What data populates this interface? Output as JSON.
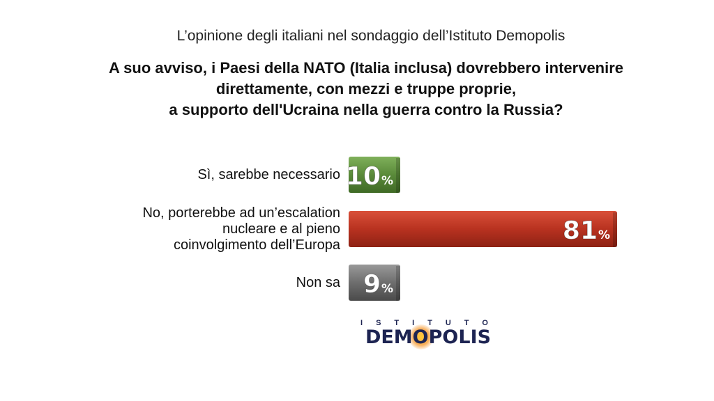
{
  "subtitle": "L’opinione degli italiani nel sondaggio dell’Istituto Demopolis",
  "question": [
    "A suo avviso, i Paesi della NATO (Italia inclusa) dovrebbero intervenire",
    "direttamente, con mezzi e truppe proprie,",
    "a supporto dell'Ucraina nella guerra contro la Russia?"
  ],
  "logo": {
    "top": "ISTITUTO",
    "main_pre": "DEM",
    "main_o": "O",
    "main_post": "POLIS"
  },
  "chart_data": {
    "type": "bar",
    "orientation": "horizontal",
    "unit": "%",
    "categories": [
      [
        "Sì, sarebbe necessario"
      ],
      [
        "No, porterebbe ad un’escalation",
        "nucleare e al pieno",
        "coinvolgimento dell’Europa"
      ],
      [
        "Non sa"
      ]
    ],
    "values": [
      10,
      81,
      9
    ],
    "value_labels": [
      "10",
      "81",
      "9"
    ],
    "colors": [
      "#5a8a3a",
      "#b83220",
      "#6e6e6e"
    ],
    "xlim": [
      0,
      81
    ],
    "grid": false,
    "legend": "none"
  }
}
